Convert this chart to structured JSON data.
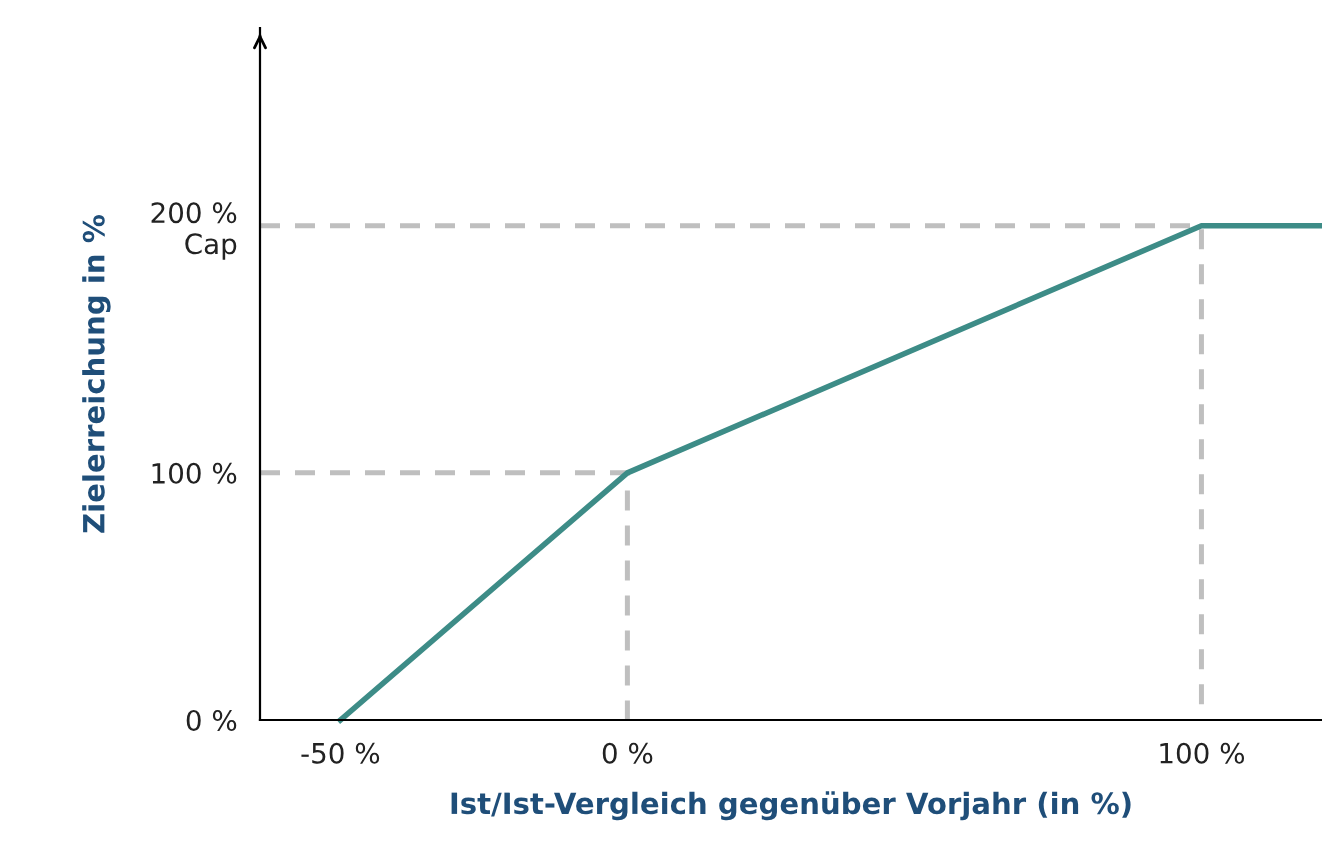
{
  "chart_data": {
    "type": "line",
    "xlabel": "Ist/Ist-Vergleich gegenüber Vorjahr (in %)",
    "ylabel": "Zielerreichung in %",
    "xlim": [
      -64,
      121
    ],
    "ylim": [
      0,
      280
    ],
    "xticks": [
      {
        "value": -50,
        "label": "-50 %"
      },
      {
        "value": 0,
        "label": "0 %"
      },
      {
        "value": 100,
        "label": "100 %"
      }
    ],
    "yticks": [
      {
        "value": 0,
        "label": "0 %"
      },
      {
        "value": 100,
        "label": "100 %"
      },
      {
        "value": 200,
        "label": "200 %\nCap"
      }
    ],
    "grid": false,
    "legend": false,
    "marker": "none",
    "series": [
      {
        "color": "#bfbfbf",
        "line_style": "dashed",
        "x": [
          -64,
          0,
          0
        ],
        "values": [
          100,
          100,
          0
        ]
      },
      {
        "color": "#bfbfbf",
        "line_style": "dashed",
        "x": [
          -64,
          100,
          100
        ],
        "values": [
          200,
          200,
          0
        ]
      },
      {
        "color": "#3d8c87",
        "line_style": "solid",
        "x": [
          -50,
          0,
          100,
          121
        ],
        "values": [
          0,
          100,
          200,
          200
        ]
      }
    ]
  }
}
